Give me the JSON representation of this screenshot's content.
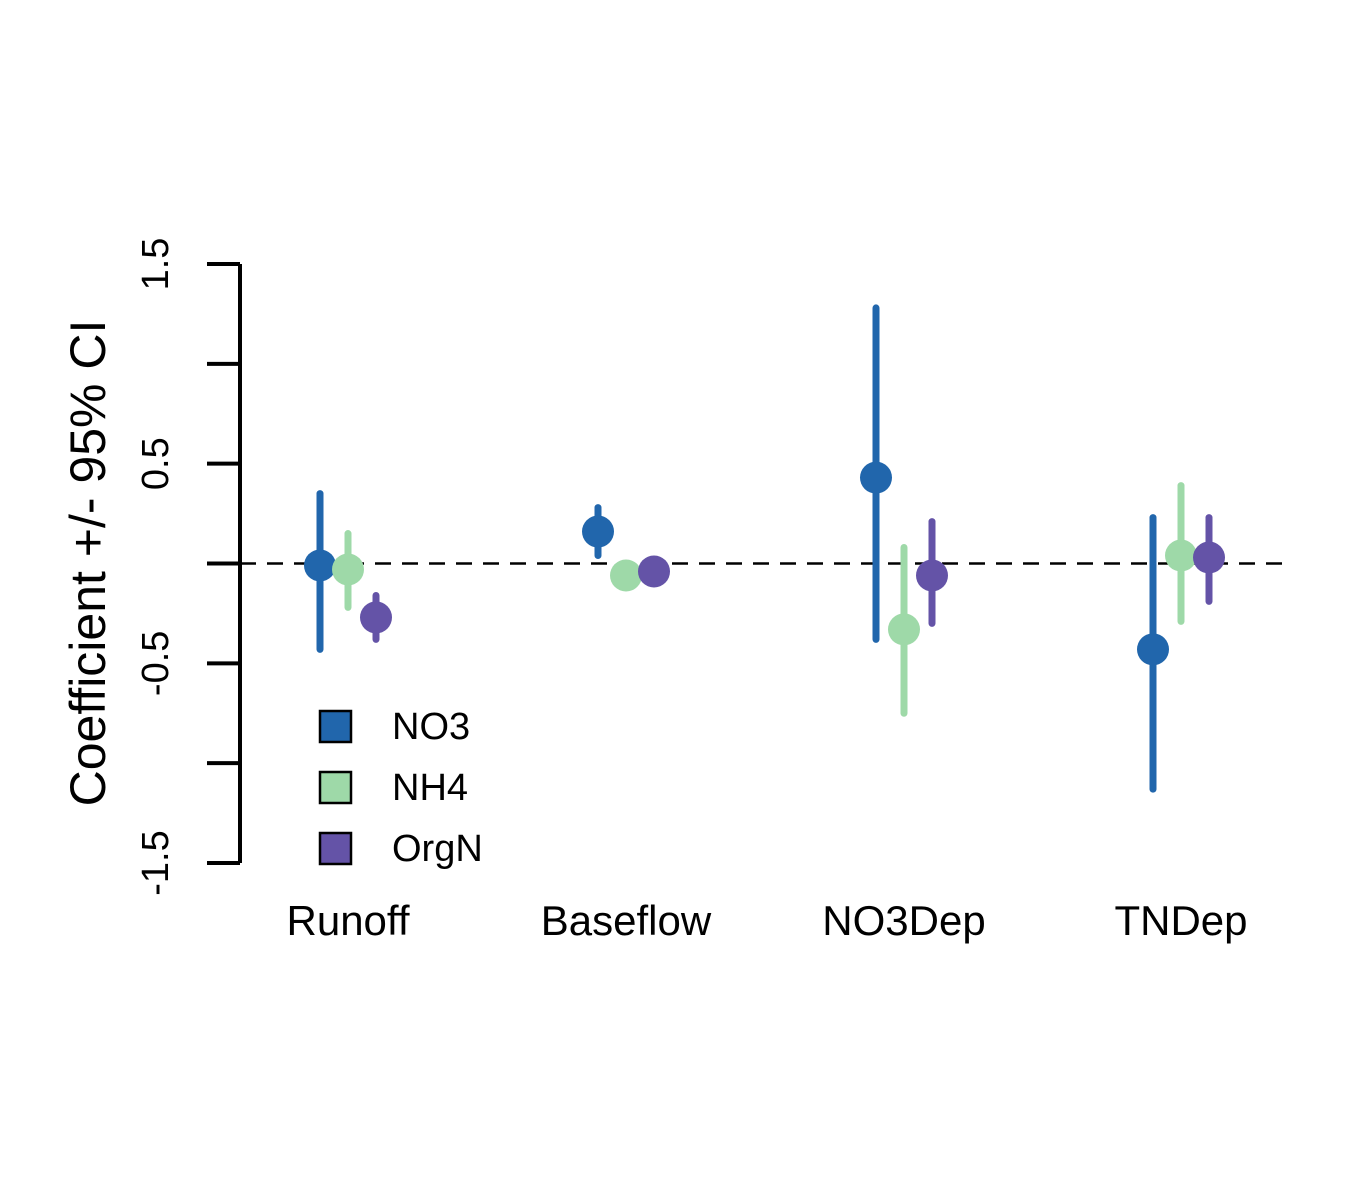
{
  "chart_data": {
    "type": "scatter",
    "ylabel": "Coefficient +/- 95% CI",
    "xlabel": "",
    "ylim": [
      -1.5,
      1.5
    ],
    "yticks": [
      -1.5,
      -1.0,
      -0.5,
      0.0,
      0.5,
      1.0,
      1.5
    ],
    "ytick_labels": [
      "-1.5",
      "",
      "-0.5",
      "",
      "0.5",
      "",
      "1.5"
    ],
    "reference_line": 0,
    "categories": [
      "Runoff",
      "Baseflow",
      "NO3Dep",
      "TNDep"
    ],
    "legend_position": "bottom-left",
    "grid": false,
    "series": [
      {
        "name": "NO3",
        "color": "#2166AC",
        "estimate": [
          -0.01,
          0.16,
          0.43,
          -0.43
        ],
        "lower": [
          -0.43,
          0.04,
          -0.38,
          -1.13
        ],
        "upper": [
          0.35,
          0.28,
          1.28,
          0.23
        ]
      },
      {
        "name": "NH4",
        "color": "#9ED9A8",
        "estimate": [
          -0.03,
          -0.06,
          -0.33,
          0.04
        ],
        "lower": [
          -0.22,
          -0.06,
          -0.75,
          -0.29
        ],
        "upper": [
          0.15,
          -0.06,
          0.08,
          0.39
        ]
      },
      {
        "name": "OrgN",
        "color": "#6453A7",
        "estimate": [
          -0.27,
          -0.04,
          -0.06,
          0.03
        ],
        "lower": [
          -0.38,
          -0.04,
          -0.3,
          -0.19
        ],
        "upper": [
          -0.16,
          -0.04,
          0.21,
          0.23
        ]
      }
    ]
  }
}
